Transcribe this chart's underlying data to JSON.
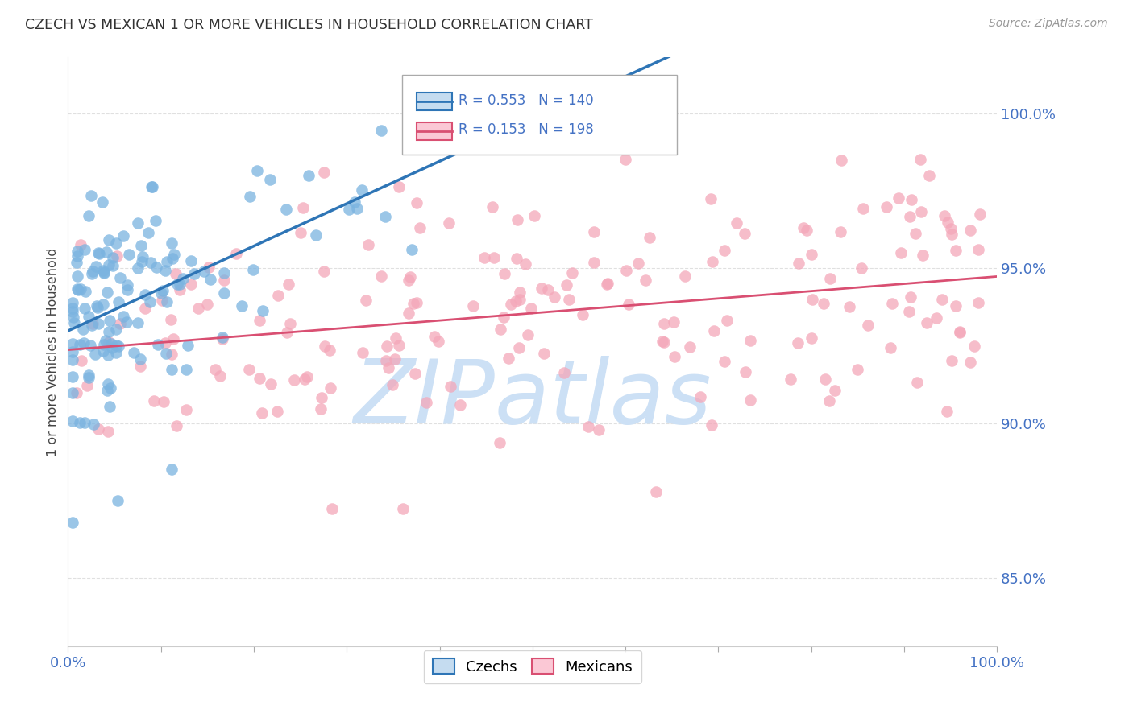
{
  "title": "CZECH VS MEXICAN 1 OR MORE VEHICLES IN HOUSEHOLD CORRELATION CHART",
  "source": "Source: ZipAtlas.com",
  "ylabel": "1 or more Vehicles in Household",
  "xlim": [
    0.0,
    1.0
  ],
  "ylim": [
    0.828,
    1.018
  ],
  "yticks": [
    0.85,
    0.9,
    0.95,
    1.0
  ],
  "ytick_labels": [
    "85.0%",
    "90.0%",
    "95.0%",
    "100.0%"
  ],
  "czech_R": 0.553,
  "czech_N": 140,
  "mexican_R": 0.153,
  "mexican_N": 198,
  "czech_color": "#7ab3e0",
  "mexican_color": "#f4a7b9",
  "czech_line_color": "#2e75b6",
  "mexican_line_color": "#d94f72",
  "axis_color": "#4472c4",
  "background_color": "#ffffff",
  "watermark_color": "#cce0f5",
  "legend_czech_label": "Czechs",
  "legend_mexican_label": "Mexicans"
}
